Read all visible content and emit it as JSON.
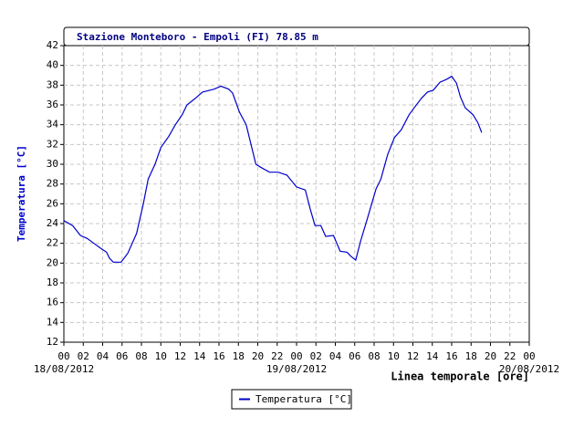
{
  "chart_data": {
    "type": "line",
    "title": "Stazione Monteboro - Empoli (FI) 78.85 m",
    "ylabel": "Temperatura [°C]",
    "xlabel": "Linea temporale [ore]",
    "x": [
      0,
      0.9,
      1.7,
      2.4,
      3.1,
      3.8,
      4.4,
      4.7,
      5.1,
      5.9,
      6.6,
      7.5,
      8.2,
      8.7,
      9.4,
      10,
      10.8,
      11.5,
      12.2,
      12.7,
      13.6,
      14.3,
      15.5,
      16.2,
      17,
      17.4,
      18.1,
      18.8,
      19.8,
      20.3,
      21.2,
      22.1,
      23,
      24,
      24.9,
      25.4,
      25.9,
      26.5,
      27,
      27.8,
      28.5,
      29.2,
      29.6,
      30.1,
      30.6,
      31.3,
      32.2,
      32.7,
      33.4,
      34.1,
      34.8,
      35.6,
      36.2,
      36.9,
      37.5,
      38.1,
      38.8,
      39.5,
      40,
      40.5,
      40.9,
      41.4,
      42.2,
      42.7,
      43.1
    ],
    "series": [
      {
        "name": "Temperatura [°C]",
        "color": "#0000cc",
        "values": [
          24.3,
          23.8,
          22.8,
          22.5,
          22,
          21.5,
          21.1,
          20.5,
          20.1,
          20.1,
          21,
          23,
          26,
          28.5,
          30,
          31.7,
          32.8,
          34,
          35,
          36,
          36.7,
          37.3,
          37.6,
          37.9,
          37.6,
          37.2,
          35.3,
          34,
          30,
          29.7,
          29.2,
          29.2,
          28.9,
          27.7,
          27.4,
          25.5,
          23.8,
          23.8,
          22.7,
          22.8,
          21.2,
          21.1,
          20.7,
          20.3,
          22.2,
          24.5,
          27.5,
          28.5,
          31,
          32.7,
          33.5,
          35,
          35.8,
          36.7,
          37.3,
          37.5,
          38.3,
          38.6,
          38.9,
          38.2,
          36.8,
          35.7,
          35,
          34.2,
          33.2
        ]
      }
    ],
    "xlim": [
      0,
      48
    ],
    "xticks": [
      {
        "value": 0,
        "label": "00"
      },
      {
        "value": 2,
        "label": "02"
      },
      {
        "value": 4,
        "label": "04"
      },
      {
        "value": 6,
        "label": "06"
      },
      {
        "value": 8,
        "label": "08"
      },
      10,
      12,
      14,
      16,
      18,
      20,
      22,
      {
        "value": 24,
        "label": "00"
      },
      {
        "value": 26,
        "label": "02"
      },
      {
        "value": 28,
        "label": "04"
      },
      {
        "value": 30,
        "label": "06"
      },
      {
        "value": 32,
        "label": "08"
      },
      {
        "value": 34,
        "label": "10"
      },
      {
        "value": 36,
        "label": "12"
      },
      {
        "value": 38,
        "label": "14"
      },
      {
        "value": 40,
        "label": "16"
      },
      {
        "value": 42,
        "label": "18"
      },
      {
        "value": 44,
        "label": "20"
      },
      {
        "value": 46,
        "label": "22"
      },
      {
        "value": 48,
        "label": "00"
      }
    ],
    "date_labels": [
      {
        "value": 0,
        "label": "18/08/2012"
      },
      {
        "value": 24,
        "label": "19/08/2012"
      },
      {
        "value": 48,
        "label": "20/08/2012"
      }
    ],
    "ylim": [
      12,
      42
    ],
    "yticks": [
      12,
      14,
      16,
      18,
      20,
      22,
      24,
      26,
      28,
      30,
      32,
      34,
      36,
      38,
      40,
      42
    ],
    "grid": true
  }
}
